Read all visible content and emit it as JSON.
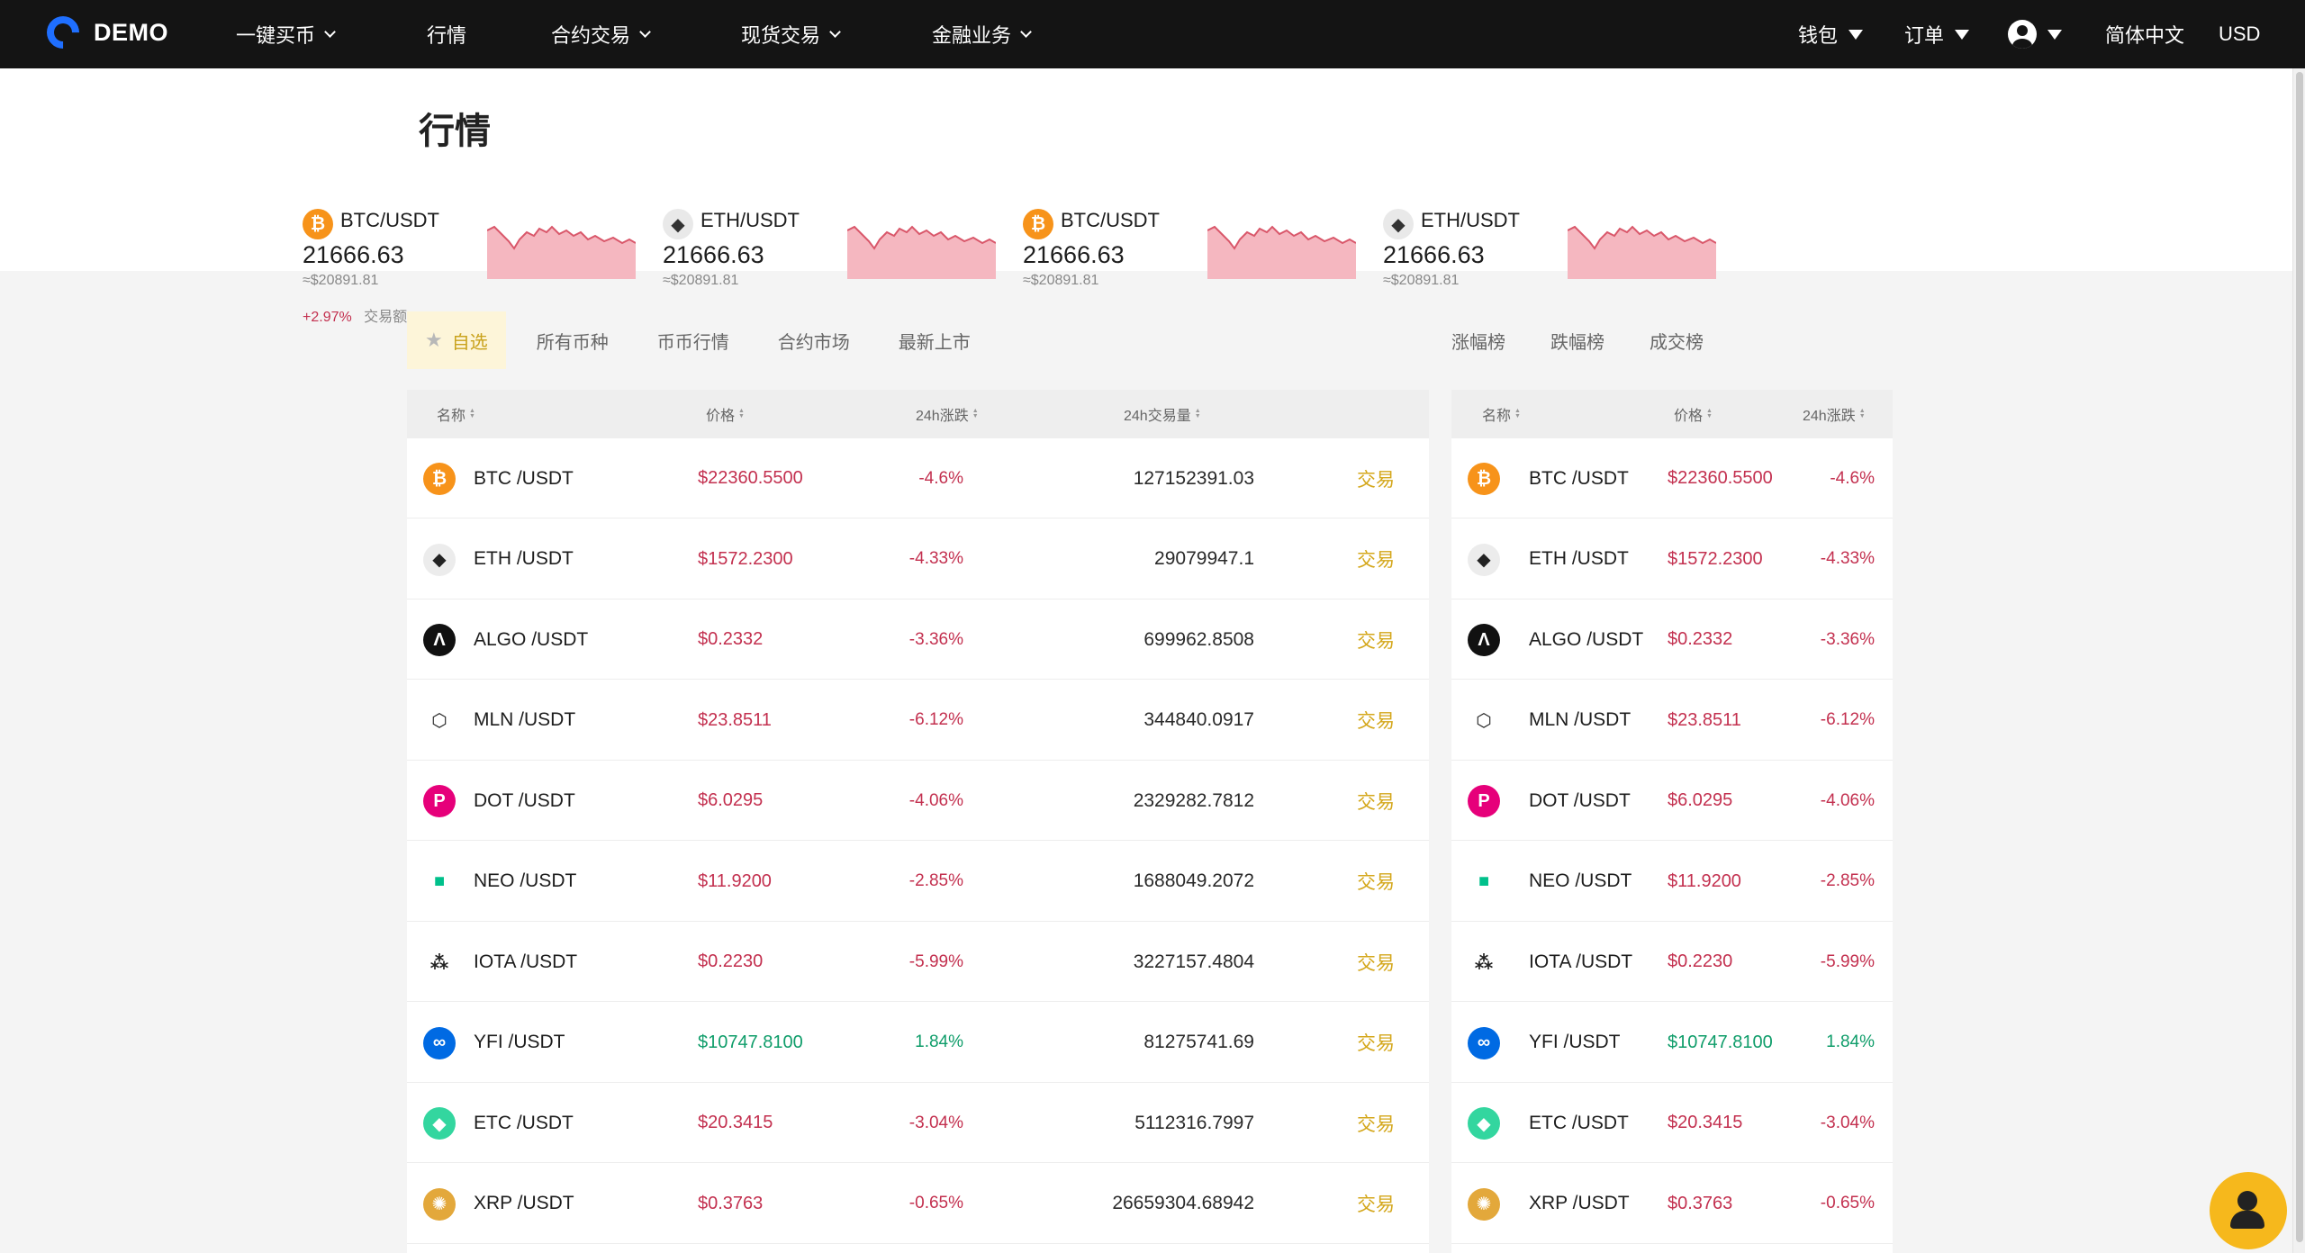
{
  "brand": {
    "name": "DEMO"
  },
  "nav": {
    "items": [
      {
        "label": "一键买币",
        "dropdown": true
      },
      {
        "label": "行情",
        "dropdown": false
      },
      {
        "label": "合约交易",
        "dropdown": true
      },
      {
        "label": "现货交易",
        "dropdown": true
      },
      {
        "label": "金融业务",
        "dropdown": true
      }
    ],
    "right": {
      "wallet": "钱包",
      "orders": "订单",
      "language": "简体中文",
      "currency": "USD"
    }
  },
  "page": {
    "title": "行情"
  },
  "tickers": [
    {
      "pair": "BTC/USDT",
      "price": "21666.63",
      "fiat": "≈$20891.81",
      "icon": "bitcoin-icon"
    },
    {
      "pair": "ETH/USDT",
      "price": "21666.63",
      "fiat": "≈$20891.81",
      "icon": "ethereum-icon"
    },
    {
      "pair": "BTC/USDT",
      "price": "21666.63",
      "fiat": "≈$20891.81",
      "icon": "bitcoin-icon"
    },
    {
      "pair": "ETH/USDT",
      "price": "21666.63",
      "fiat": "≈$20891.81",
      "icon": "ethereum-icon"
    }
  ],
  "ticker_extra": {
    "change": "+2.97%",
    "volume_label": "交易额"
  },
  "tabs": [
    "自选",
    "所有币种",
    "币币行情",
    "合约市场",
    "最新上市"
  ],
  "rank_tabs": [
    "涨幅榜",
    "跌幅榜",
    "成交榜"
  ],
  "table": {
    "headers": {
      "name": "名称",
      "price": "价格",
      "change": "24h涨跌",
      "volume": "24h交易量"
    },
    "trade_label": "交易",
    "rows": [
      {
        "pair": "BTC /USDT",
        "price": "$22360.5500",
        "change": "-4.6%",
        "volume": "127152391.03",
        "up": false,
        "icon": "bitcoin-icon",
        "color": "#f7931a",
        "glyph": "₿"
      },
      {
        "pair": "ETH /USDT",
        "price": "$1572.2300",
        "change": "-4.33%",
        "volume": "29079947.1",
        "up": false,
        "icon": "ethereum-icon",
        "color": "#ececec",
        "glyph": "◆"
      },
      {
        "pair": "ALGO /USDT",
        "price": "$0.2332",
        "change": "-3.36%",
        "volume": "699962.8508",
        "up": false,
        "icon": "algorand-icon",
        "color": "#111111",
        "glyph": "Λ"
      },
      {
        "pair": "MLN /USDT",
        "price": "$23.8511",
        "change": "-6.12%",
        "volume": "344840.0917",
        "up": false,
        "icon": "melon-icon",
        "color": "#ffffff",
        "glyph": "⬡"
      },
      {
        "pair": "DOT /USDT",
        "price": "$6.0295",
        "change": "-4.06%",
        "volume": "2329282.7812",
        "up": false,
        "icon": "polkadot-icon",
        "color": "#e6007a",
        "glyph": "P"
      },
      {
        "pair": "NEO /USDT",
        "price": "$11.9200",
        "change": "-2.85%",
        "volume": "1688049.2072",
        "up": false,
        "icon": "neo-icon",
        "color": "#ffffff",
        "glyph": "■"
      },
      {
        "pair": "IOTA /USDT",
        "price": "$0.2230",
        "change": "-5.99%",
        "volume": "3227157.4804",
        "up": false,
        "icon": "iota-icon",
        "color": "#ffffff",
        "glyph": "⁂"
      },
      {
        "pair": "YFI /USDT",
        "price": "$10747.8100",
        "change": "1.84%",
        "volume": "81275741.69",
        "up": true,
        "icon": "yearn-icon",
        "color": "#006ae3",
        "glyph": "∞"
      },
      {
        "pair": "ETC /USDT",
        "price": "$20.3415",
        "change": "-3.04%",
        "volume": "5112316.7997",
        "up": false,
        "icon": "ethereum-classic-icon",
        "color": "#33d69f",
        "glyph": "◆"
      },
      {
        "pair": "XRP /USDT",
        "price": "$0.3763",
        "change": "-0.65%",
        "volume": "26659304.68942",
        "up": false,
        "icon": "xrp-icon",
        "color": "#e3a83b",
        "glyph": "✺"
      }
    ]
  },
  "colors": {
    "accent": "#d4a71b",
    "down": "#c3304f",
    "up": "#0f9d6a",
    "nav_bg": "#141414"
  }
}
